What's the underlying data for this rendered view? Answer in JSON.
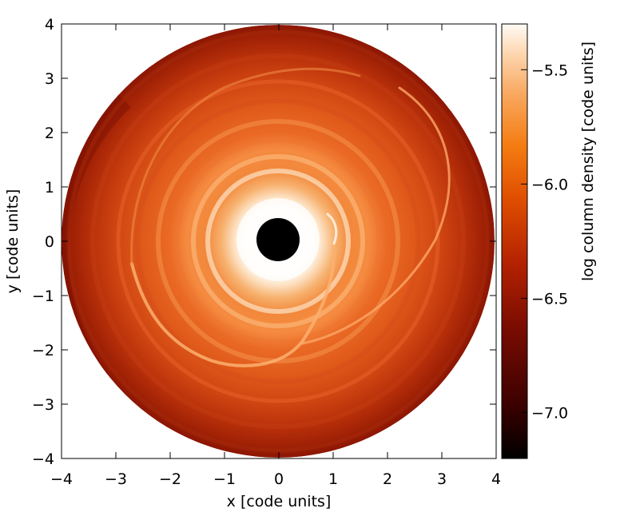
{
  "chart_data": {
    "type": "heatmap",
    "title": "",
    "xlabel": "x [code units]",
    "ylabel": "y [code units]",
    "xlim": [
      -4,
      4
    ],
    "ylim": [
      -4,
      4
    ],
    "x_ticks": [
      -4,
      -3,
      -2,
      -1,
      0,
      1,
      2,
      3,
      4
    ],
    "y_ticks": [
      -4,
      -3,
      -2,
      -1,
      0,
      1,
      2,
      3,
      4
    ],
    "x_tick_labels": [
      "−4",
      "−3",
      "−2",
      "−1",
      "0",
      "1",
      "2",
      "3",
      "4"
    ],
    "y_tick_labels": [
      "−4",
      "−3",
      "−2",
      "−1",
      "0",
      "1",
      "2",
      "3",
      "4"
    ],
    "grid": false,
    "disk": {
      "outer_radius": 4.0,
      "inner_hole_radius": 0.4,
      "planet_position": [
        1.0,
        0.15
      ]
    },
    "colorbar": {
      "label": "log column density [code units]",
      "range": [
        -7.2,
        -5.3
      ],
      "ticks": [
        -7.0,
        -6.5,
        -6.0,
        -5.5
      ],
      "tick_labels": [
        "−7.0",
        "−6.5",
        "−6.0",
        "−5.5"
      ],
      "colormap": [
        "#000000",
        "#5a0000",
        "#a41b00",
        "#d24400",
        "#ee6e00",
        "#f99a3c",
        "#fdd3a4",
        "#fffbf4"
      ]
    },
    "colors": {
      "hole": "#000000",
      "outer_edge": "#8c1500",
      "mid_disk": "#e95e1b",
      "inner_disk": "#fcc58f",
      "core": "#fff9f1"
    }
  }
}
